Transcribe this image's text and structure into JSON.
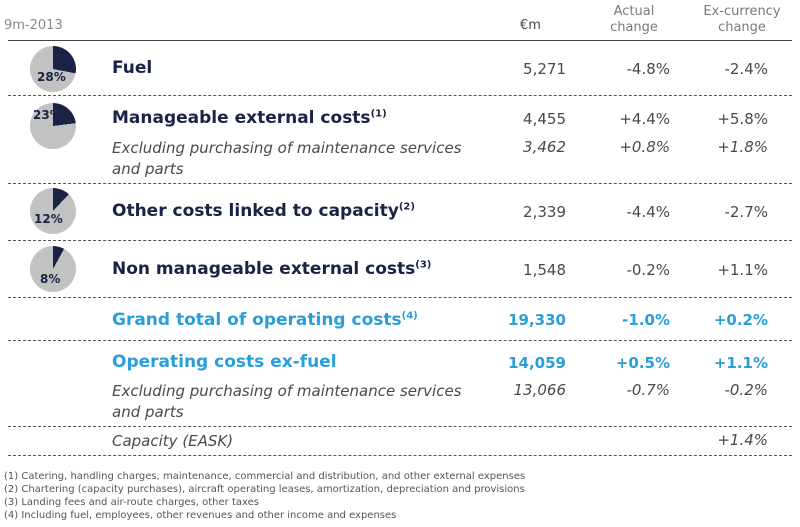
{
  "header": {
    "period": "9m-2013",
    "col_eur": "€m",
    "col_actual": "Actual change",
    "col_excurrency": "Ex-currency change"
  },
  "rows": {
    "fuel": {
      "label": "Fuel",
      "eur": "5,271",
      "actual": "-4.8%",
      "excurrency": "-2.4%",
      "pie_pct": "28%",
      "pie_share": 0.28
    },
    "manageable": {
      "label": "Manageable external costs",
      "note": "(1)",
      "eur": "4,455",
      "actual": "+4.4%",
      "excurrency": "+5.8%",
      "pie_pct": "23%",
      "pie_share": 0.23,
      "sub_label": "Excluding purchasing of maintenance services and parts",
      "sub_eur": "3,462",
      "sub_actual": "+0.8%",
      "sub_excurrency": "+1.8%"
    },
    "capacity_costs": {
      "label": "Other costs linked to capacity",
      "note": "(2)",
      "eur": "2,339",
      "actual": "-4.4%",
      "excurrency": "-2.7%",
      "pie_pct": "12%",
      "pie_share": 0.12
    },
    "non_manageable": {
      "label": "Non manageable external costs",
      "note": "(3)",
      "eur": "1,548",
      "actual": "-0.2%",
      "excurrency": "+1.1%",
      "pie_pct": "8%",
      "pie_share": 0.08
    },
    "grand_total": {
      "label": "Grand total of operating costs",
      "note": "(4)",
      "eur": "19,330",
      "actual": "-1.0%",
      "excurrency": "+0.2%"
    },
    "ex_fuel": {
      "label": "Operating costs ex-fuel",
      "eur": "14,059",
      "actual": "+0.5%",
      "excurrency": "+1.1%",
      "sub_label": "Excluding purchasing of maintenance services and parts",
      "sub_eur": "13,066",
      "sub_actual": "-0.7%",
      "sub_excurrency": "-0.2%"
    },
    "eask": {
      "label": "Capacity (EASK)",
      "excurrency": "+1.4%"
    }
  },
  "footnotes": [
    "(1) Catering, handling charges, maintenance, commercial and distribution, and other external expenses",
    "(2) Chartering (capacity purchases), aircraft operating leases, amortization, depreciation and provisions",
    "(3) Landing fees and air-route charges, other taxes",
    "(4) Including fuel, employees, other revenues and other income and expenses"
  ],
  "colors": {
    "navy": "#1a2345",
    "pie_gray": "#c2c2c2",
    "accent_blue": "#2a9ed8"
  }
}
